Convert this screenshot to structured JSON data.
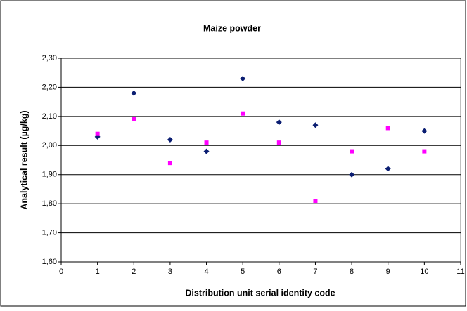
{
  "chart_data": {
    "type": "scatter",
    "title": "Maize powder",
    "x_label": "Distribution unit serial identity code",
    "y_label": "Analytical result (µg/kg)",
    "x": [
      1,
      2,
      3,
      4,
      5,
      6,
      7,
      8,
      9,
      10
    ],
    "series": [
      {
        "color": "#0b1e72",
        "marker": "diamond",
        "values": [
          2.03,
          2.18,
          2.02,
          1.98,
          2.23,
          2.08,
          2.07,
          1.9,
          1.92,
          2.05
        ]
      },
      {
        "color": "#ff00ff",
        "marker": "square",
        "values": [
          2.04,
          2.09,
          1.94,
          2.01,
          2.11,
          2.01,
          1.81,
          1.98,
          2.06,
          1.98
        ]
      }
    ],
    "xlim": [
      0,
      11
    ],
    "xticks": [
      0,
      1,
      2,
      3,
      4,
      5,
      6,
      7,
      8,
      9,
      10,
      11
    ],
    "ylim": [
      1.6,
      2.3
    ],
    "yticks": [
      {
        "value": 1.6,
        "label": "1,60"
      },
      {
        "value": 1.7,
        "label": "1,70"
      },
      {
        "value": 1.8,
        "label": "1,80"
      },
      {
        "value": 1.9,
        "label": "1,90"
      },
      {
        "value": 2.0,
        "label": "2,00"
      },
      {
        "value": 2.1,
        "label": "2,10"
      },
      {
        "value": 2.2,
        "label": "2,20"
      },
      {
        "value": 2.3,
        "label": "2,30"
      }
    ],
    "grid": true
  }
}
